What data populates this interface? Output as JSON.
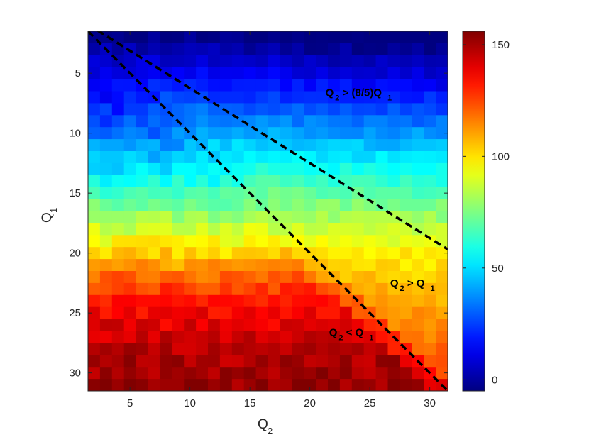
{
  "chart_data": {
    "type": "heatmap",
    "title": "",
    "xlabel": {
      "main": "Q",
      "sub": "2"
    },
    "ylabel": {
      "main": "Q",
      "sub": "1"
    },
    "xlim": [
      1.5,
      31.5
    ],
    "ylim": [
      1.5,
      31.5
    ],
    "y_reversed": true,
    "grid_size": [
      31,
      31
    ],
    "xticks": [
      5,
      10,
      15,
      20,
      25,
      30
    ],
    "yticks": [
      5,
      10,
      15,
      20,
      25,
      30
    ],
    "colormap": "jet",
    "colorbar": {
      "min": -5,
      "max": 156,
      "ticks": [
        0,
        50,
        100,
        150
      ]
    },
    "value_model": {
      "description_note": "",
      "upper_region_value_at_q1": [
        [
          2,
          -2
        ],
        [
          5,
          8
        ],
        [
          8,
          22
        ],
        [
          10,
          32
        ],
        [
          12,
          45
        ],
        [
          14,
          58
        ],
        [
          16,
          72
        ],
        [
          18,
          88
        ],
        [
          20,
          103
        ],
        [
          22,
          120
        ],
        [
          24,
          133
        ],
        [
          26,
          140
        ],
        [
          28,
          147
        ],
        [
          30,
          151
        ],
        [
          31,
          153
        ]
      ],
      "lower_region_value_at_q1": [
        [
          2,
          -2
        ],
        [
          20,
          100
        ],
        [
          22,
          105
        ],
        [
          24,
          110
        ],
        [
          26,
          115
        ],
        [
          28,
          120
        ],
        [
          30,
          125
        ],
        [
          31,
          127
        ]
      ],
      "boundary_line": "Q2 = Q1"
    },
    "lines": [
      {
        "name": "",
        "style": "dashed",
        "color": "#000000",
        "x": [
          1.5,
          31.5
        ],
        "y": [
          0.94,
          19.69
        ]
      },
      {
        "name": "",
        "style": "dashed",
        "color": "#000000",
        "x": [
          1.5,
          31.5
        ],
        "y": [
          1.5,
          31.5
        ]
      }
    ],
    "annotations": [
      {
        "main_a": "Q",
        "sub_a": "2",
        "mid": " > (8/5)Q",
        "sub_b": "1",
        "x": 21.3,
        "y": 6.9
      },
      {
        "main_a": "Q",
        "sub_a": "2",
        "mid": " > Q",
        "sub_b": "1",
        "x": 26.7,
        "y": 22.8
      },
      {
        "main_a": "Q",
        "sub_a": "2",
        "mid": " < Q",
        "sub_b": "1",
        "x": 21.6,
        "y": 26.9
      }
    ]
  }
}
